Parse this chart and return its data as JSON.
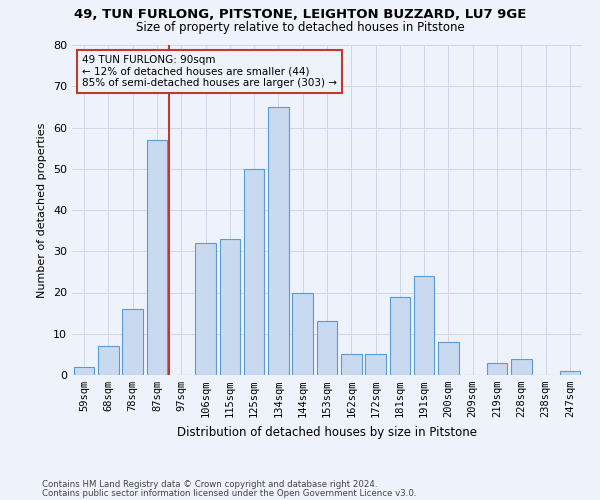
{
  "title1": "49, TUN FURLONG, PITSTONE, LEIGHTON BUZZARD, LU7 9GE",
  "title2": "Size of property relative to detached houses in Pitstone",
  "xlabel": "Distribution of detached houses by size in Pitstone",
  "ylabel": "Number of detached properties",
  "categories": [
    "59sqm",
    "68sqm",
    "78sqm",
    "87sqm",
    "97sqm",
    "106sqm",
    "115sqm",
    "125sqm",
    "134sqm",
    "144sqm",
    "153sqm",
    "162sqm",
    "172sqm",
    "181sqm",
    "191sqm",
    "200sqm",
    "209sqm",
    "219sqm",
    "228sqm",
    "238sqm",
    "247sqm"
  ],
  "values": [
    2,
    7,
    16,
    57,
    0,
    32,
    33,
    50,
    65,
    20,
    13,
    5,
    5,
    19,
    24,
    8,
    0,
    3,
    4,
    0,
    1
  ],
  "bar_color": "#c9d9f0",
  "bar_edge_color": "#5b9bd5",
  "vline_color": "#c0392b",
  "annotation_text": "49 TUN FURLONG: 90sqm\n← 12% of detached houses are smaller (44)\n85% of semi-detached houses are larger (303) →",
  "annotation_box_color": "#c0392b",
  "ylim": [
    0,
    80
  ],
  "yticks": [
    0,
    10,
    20,
    30,
    40,
    50,
    60,
    70,
    80
  ],
  "grid_color": "#d0d8e8",
  "footnote1": "Contains HM Land Registry data © Crown copyright and database right 2024.",
  "footnote2": "Contains public sector information licensed under the Open Government Licence v3.0.",
  "bg_color": "#eef2fb"
}
